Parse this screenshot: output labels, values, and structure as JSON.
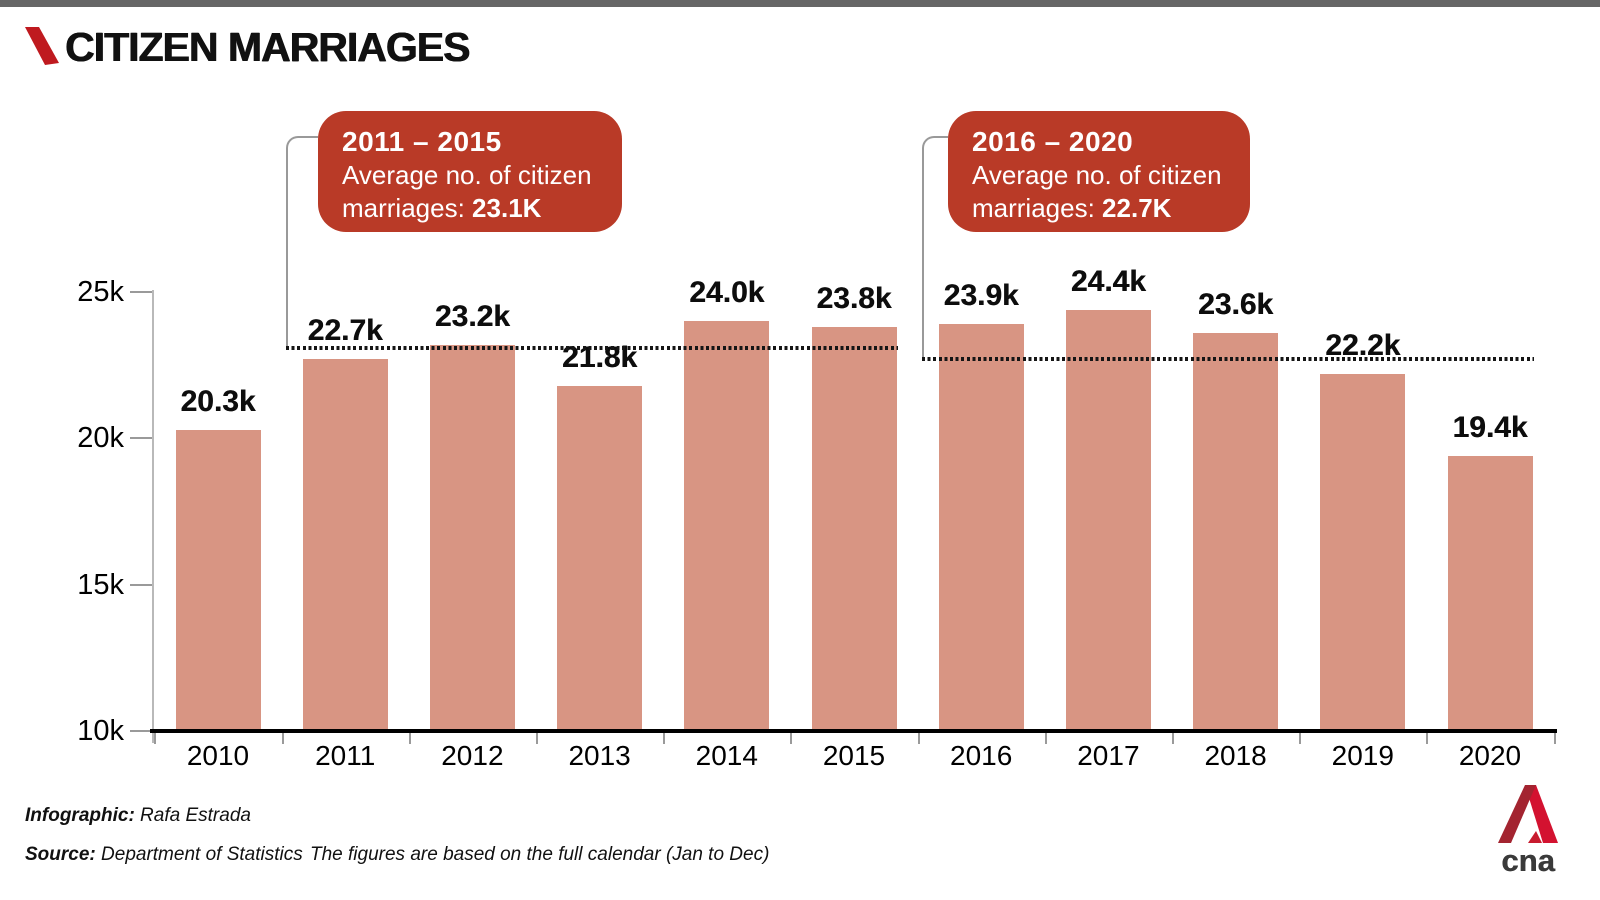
{
  "page": {
    "title": "CITIZEN MARRIAGES"
  },
  "callouts": [
    {
      "period": "2011 – 2015",
      "body_line1": "Average no. of citizen",
      "body_line2_label": "marriages: ",
      "average_value": "23.1K"
    },
    {
      "period": "2016 – 2020",
      "body_line1": "Average no. of citizen",
      "body_line2_label": "marriages: ",
      "average_value": "22.7K"
    }
  ],
  "chart_data": {
    "type": "bar",
    "title": "Citizen marriages per year",
    "categories": [
      "2010",
      "2011",
      "2012",
      "2013",
      "2014",
      "2015",
      "2016",
      "2017",
      "2018",
      "2019",
      "2020"
    ],
    "values": [
      20.3,
      22.7,
      23.2,
      21.8,
      24.0,
      23.8,
      23.9,
      24.4,
      23.6,
      22.2,
      19.4
    ],
    "bar_labels": [
      "20.3k",
      "22.7k",
      "23.2k",
      "21.8k",
      "24.0k",
      "23.8k",
      "23.9k",
      "24.4k",
      "23.6k",
      "22.2k",
      "19.4k"
    ],
    "yticks": [
      {
        "label": "25k",
        "value": 25
      },
      {
        "label": "20k",
        "value": 20
      },
      {
        "label": "15k",
        "value": 15
      },
      {
        "label": "10k",
        "value": 10
      }
    ],
    "ylim": [
      10,
      25
    ],
    "grid": false,
    "bar_color": "#d89583",
    "annotations": [
      {
        "name": "avg-2011-2015",
        "value": 23.1,
        "start_year": "2011",
        "end_year": "2015"
      },
      {
        "name": "avg-2016-2020",
        "value": 22.7,
        "start_year": "2016",
        "end_year": "2020"
      }
    ]
  },
  "footer": {
    "infographic_label": "Infographic:",
    "infographic_value": " Rafa Estrada",
    "source_label": "Source:",
    "source_value": " Department of Statistics",
    "note": "The figures are based on the full calendar (Jan to Dec)"
  },
  "branding": {
    "logo_text": "cna"
  },
  "colors": {
    "topbar": "#666666",
    "bar": "#d89583",
    "callout_bg": "#b93a27",
    "brand_red": "#c0141f",
    "cna_red_bright": "#d31230",
    "cna_red_dark": "#a32430"
  }
}
